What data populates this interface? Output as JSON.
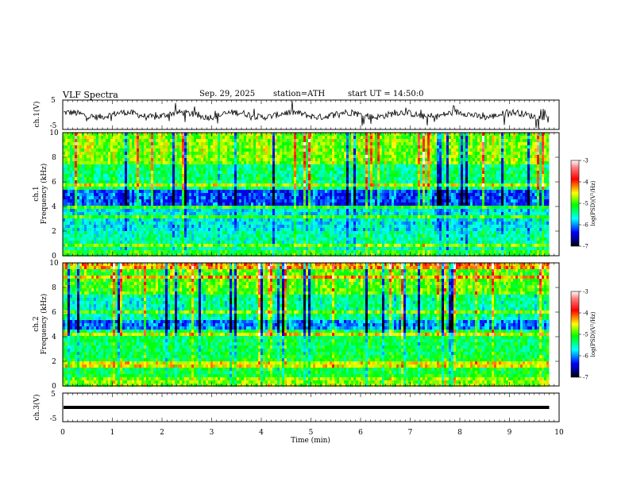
{
  "header": {
    "title": "VLF Spectra",
    "date": "Sep. 29, 2025",
    "station": "station=ATH",
    "start_ut": "start UT =  14:50:0"
  },
  "chart_data": [
    {
      "type": "line",
      "id": "ch1-waveform",
      "ylabel": "ch.1(V)",
      "ylim": [
        -5,
        5
      ],
      "yticks": [
        "5",
        "-5"
      ],
      "xlim": [
        0,
        10
      ],
      "data_extent_min": 9.8,
      "description": "noisy waveform centred near 0 V"
    },
    {
      "type": "heatmap",
      "id": "ch1-spectrogram",
      "ylabel": "ch.1\nFrequency (kHz)",
      "ylim": [
        0,
        10
      ],
      "yticks": [
        "0",
        "2",
        "4",
        "6",
        "8",
        "10"
      ],
      "xlim": [
        0,
        10
      ],
      "data_extent_min": 9.8,
      "colorbar": {
        "label": "log(PSD)(V²/Hz)",
        "range": [
          -7,
          -3
        ],
        "ticks": [
          "-3",
          "-4",
          "-5",
          "-6",
          "-7"
        ]
      }
    },
    {
      "type": "heatmap",
      "id": "ch2-spectrogram",
      "ylabel": "ch.2\nFrequency (kHz)",
      "ylim": [
        0,
        10
      ],
      "yticks": [
        "0",
        "2",
        "4",
        "6",
        "8",
        "10"
      ],
      "xlim": [
        0,
        10
      ],
      "data_extent_min": 9.8,
      "colorbar": {
        "label": "log(PSD)(V²/Hz)",
        "range": [
          -7,
          -3
        ],
        "ticks": [
          "-3",
          "-4",
          "-5",
          "-6",
          "-7"
        ]
      }
    },
    {
      "type": "line",
      "id": "ch3-waveform",
      "ylabel": "ch.3(V)",
      "ylim": [
        -5,
        5
      ],
      "yticks": [
        "5",
        "-5"
      ],
      "xlim": [
        0,
        10
      ],
      "data_extent_min": 9.8,
      "description": "flat thick trace near 0 V"
    }
  ],
  "xaxis": {
    "label": "Time (min)",
    "ticks": [
      "0",
      "1",
      "2",
      "3",
      "4",
      "5",
      "6",
      "7",
      "8",
      "9",
      "10"
    ]
  },
  "colors": {
    "waveform": "#000000",
    "frame": "#000000"
  }
}
